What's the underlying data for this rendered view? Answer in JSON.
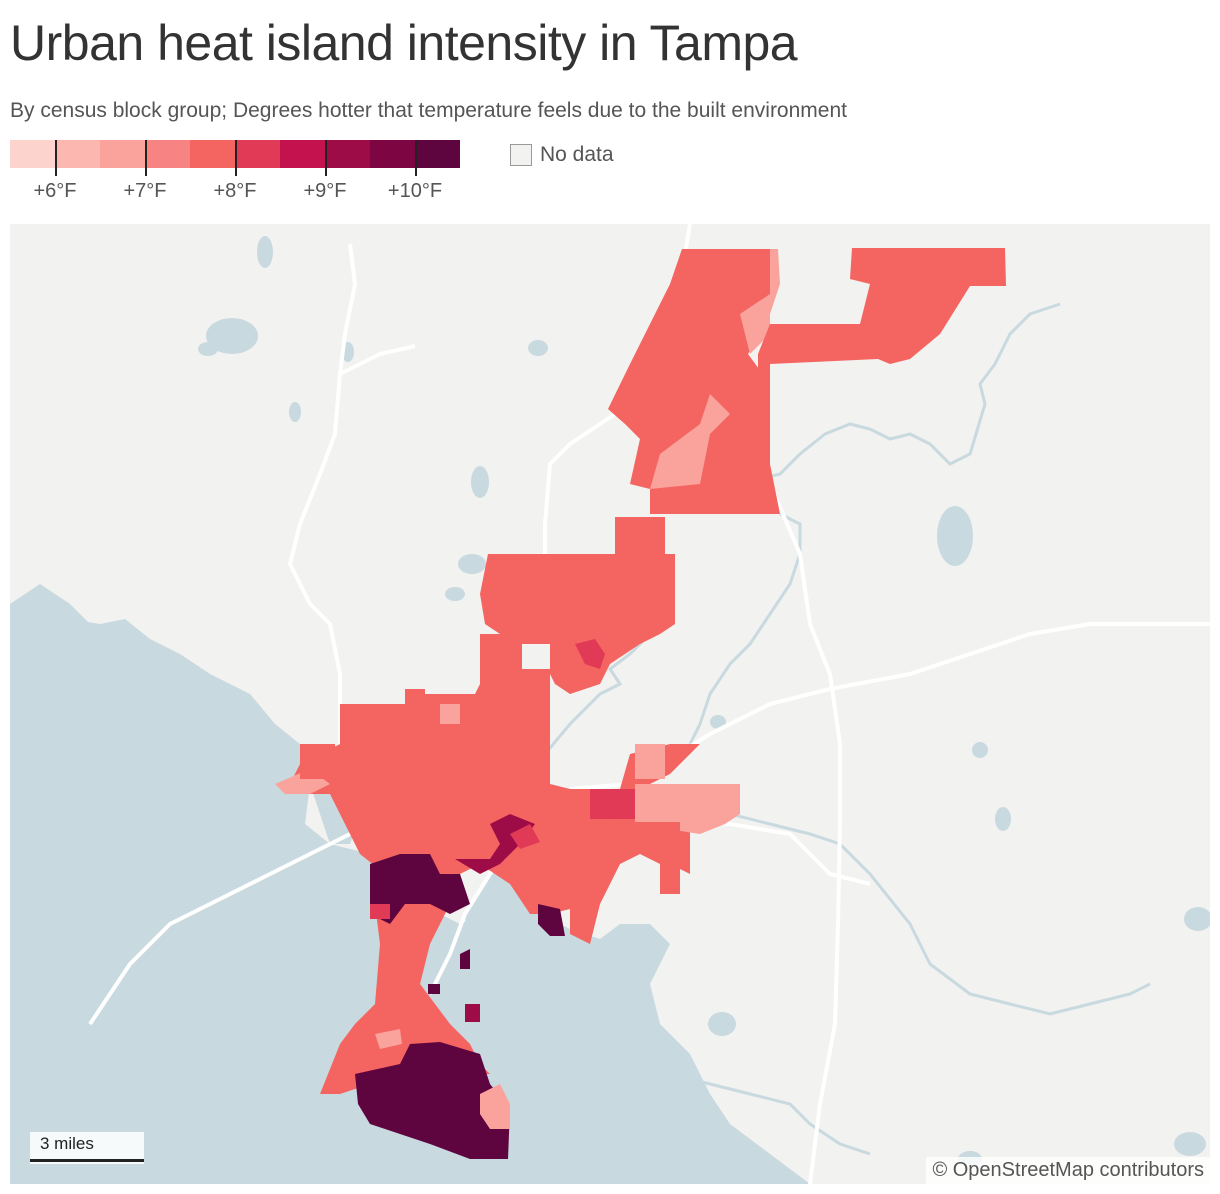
{
  "header": {
    "title": "Urban heat island intensity in Tampa",
    "subtitle": "By census block group; Degrees hotter that temperature feels due to the built environment"
  },
  "legend": {
    "colors": [
      "#fdd3cd",
      "#fcb8b0",
      "#f9a39c",
      "#f78483",
      "#f46460",
      "#e03a57",
      "#c4124f",
      "#9e0c48",
      "#7d0642",
      "#5e0540"
    ],
    "ticks": [
      "+6°F",
      "+7°F",
      "+8°F",
      "+9°F",
      "+10°F"
    ],
    "no_data_label": "No data",
    "no_data_color": "#f2f2f0"
  },
  "map": {
    "colors": {
      "land": "#f2f2f0",
      "water": "#c8d9df",
      "roads": "#ffffff",
      "heat_8": "#f46460",
      "heat_7": "#f9a39c",
      "heat_6": "#fcb8b0",
      "heat_9": "#e03a57",
      "heat_10": "#5e0540",
      "heat_95": "#9e0c48"
    },
    "scale_label": "3 miles",
    "attribution": "© OpenStreetMap contributors"
  }
}
